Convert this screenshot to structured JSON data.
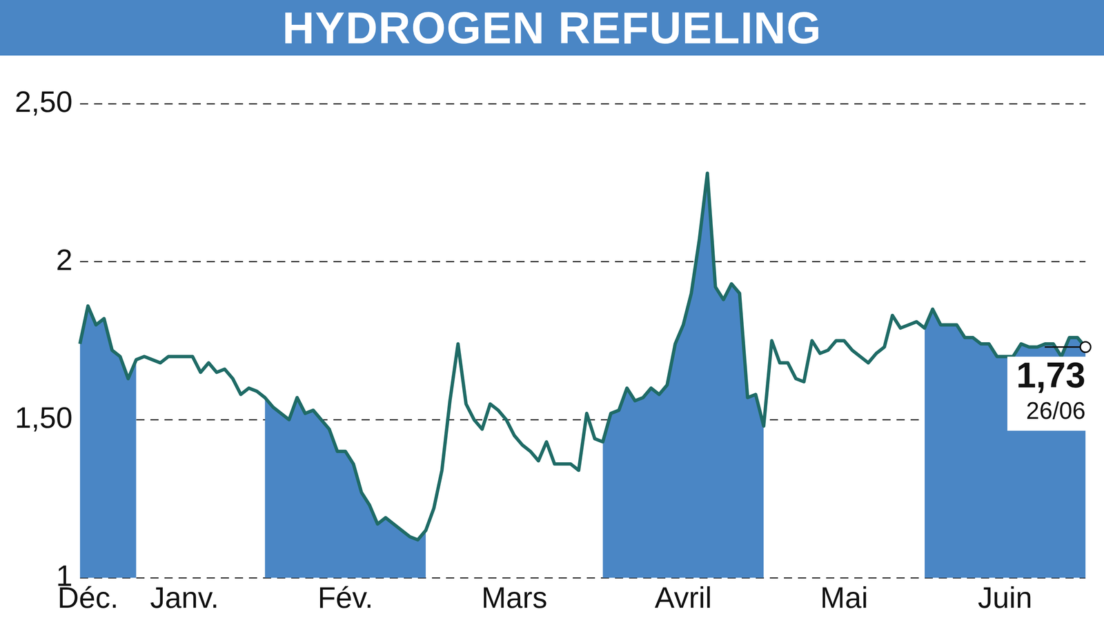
{
  "chart_data": {
    "type": "line",
    "title": "HYDROGEN REFUELING",
    "categories": [
      null,
      "Déc.",
      null,
      null,
      null,
      null,
      null,
      null,
      null,
      null,
      null,
      null,
      null,
      "Janv.",
      null,
      null,
      null,
      null,
      null,
      null,
      null,
      null,
      null,
      null,
      null,
      null,
      null,
      null,
      null,
      null,
      null,
      null,
      null,
      "Fév.",
      null,
      null,
      null,
      null,
      null,
      null,
      null,
      null,
      null,
      null,
      null,
      null,
      null,
      null,
      null,
      null,
      null,
      null,
      null,
      null,
      "Mars",
      null,
      null,
      null,
      null,
      null,
      null,
      null,
      null,
      null,
      null,
      null,
      null,
      null,
      null,
      null,
      null,
      null,
      null,
      null,
      null,
      "Avril",
      null,
      null,
      null,
      null,
      null,
      null,
      null,
      null,
      null,
      null,
      null,
      null,
      null,
      null,
      null,
      null,
      null,
      null,
      null,
      "Mai",
      null,
      null,
      null,
      null,
      null,
      null,
      null,
      null,
      null,
      null,
      null,
      null,
      null,
      null,
      null,
      null,
      null,
      null,
      null,
      "Juin",
      null,
      null,
      null,
      null,
      null,
      null,
      null,
      null,
      null,
      null
    ],
    "values": [
      1.74,
      1.86,
      1.8,
      1.82,
      1.72,
      1.7,
      1.63,
      1.69,
      1.7,
      1.69,
      1.68,
      1.7,
      1.7,
      1.7,
      1.7,
      1.65,
      1.68,
      1.65,
      1.66,
      1.63,
      1.58,
      1.6,
      1.59,
      1.57,
      1.54,
      1.52,
      1.5,
      1.57,
      1.52,
      1.53,
      1.5,
      1.47,
      1.4,
      1.4,
      1.36,
      1.27,
      1.23,
      1.17,
      1.19,
      1.17,
      1.15,
      1.13,
      1.12,
      1.15,
      1.22,
      1.34,
      1.56,
      1.74,
      1.55,
      1.5,
      1.47,
      1.55,
      1.53,
      1.5,
      1.45,
      1.42,
      1.4,
      1.37,
      1.43,
      1.36,
      1.36,
      1.36,
      1.34,
      1.52,
      1.44,
      1.43,
      1.52,
      1.53,
      1.6,
      1.56,
      1.57,
      1.6,
      1.58,
      1.61,
      1.74,
      1.8,
      1.9,
      2.07,
      2.28,
      1.92,
      1.88,
      1.93,
      1.9,
      1.57,
      1.58,
      1.48,
      1.75,
      1.68,
      1.68,
      1.63,
      1.62,
      1.75,
      1.71,
      1.72,
      1.75,
      1.75,
      1.72,
      1.7,
      1.68,
      1.71,
      1.73,
      1.83,
      1.79,
      1.8,
      1.81,
      1.79,
      1.85,
      1.8,
      1.8,
      1.8,
      1.76,
      1.76,
      1.74,
      1.74,
      1.7,
      1.7,
      1.7,
      1.74,
      1.73,
      1.73,
      1.74,
      1.74,
      1.7,
      1.76,
      1.76,
      1.73
    ],
    "color": "#1f6b66",
    "ylim": [
      1,
      2.5
    ],
    "yticks": [
      1,
      {
        "value": 1.5,
        "label": "1,50"
      },
      2,
      {
        "value": 2.5,
        "label": "2,50"
      }
    ],
    "grid": true,
    "annotations": [
      {
        "label": "1,73",
        "date": "26/06"
      }
    ]
  }
}
